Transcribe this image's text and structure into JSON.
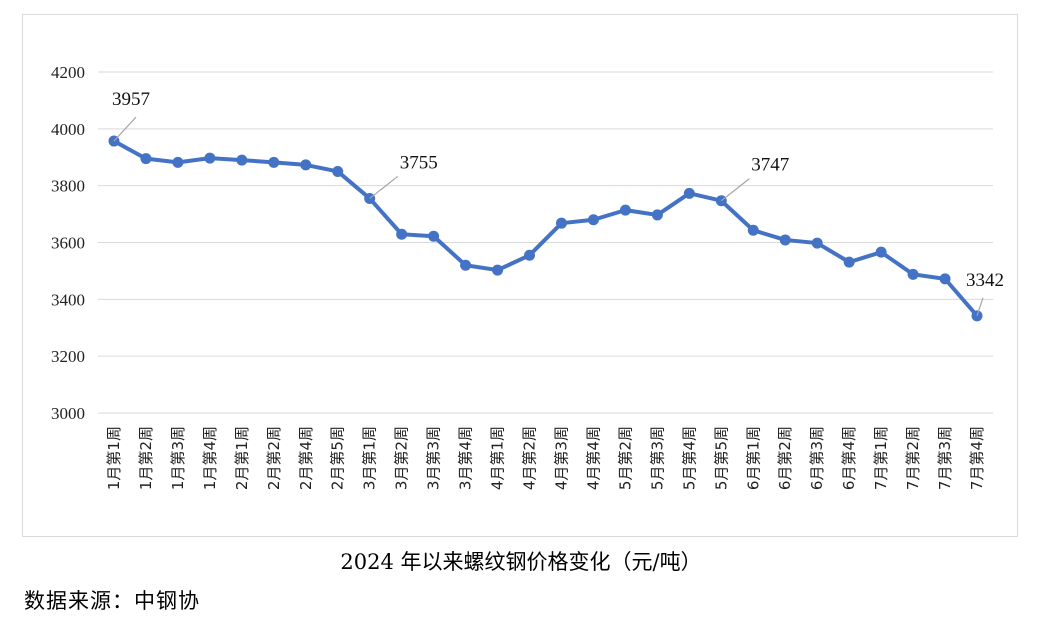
{
  "chart_data": {
    "type": "line",
    "title": "2024 年以来螺纹钢价格变化（元/吨）",
    "xlabel": "",
    "ylabel": "",
    "ylim": [
      3000,
      4200
    ],
    "yticks": [
      3000,
      3200,
      3400,
      3600,
      3800,
      4000,
      4200
    ],
    "grid": true,
    "legend": "none",
    "line_color": "#4472c4",
    "categories": [
      "1月第1周",
      "1月第2周",
      "1月第3周",
      "1月第4周",
      "2月第1周",
      "2月第2周",
      "2月第4周",
      "2月第5周",
      "3月第1周",
      "3月第2周",
      "3月第3周",
      "3月第4周",
      "4月第1周",
      "4月第2周",
      "4月第3周",
      "4月第4周",
      "5月第2周",
      "5月第3周",
      "5月第4周",
      "5月第5周",
      "6月第1周",
      "6月第2周",
      "6月第3周",
      "6月第4周",
      "7月第1周",
      "7月第2周",
      "7月第3周",
      "7月第4周"
    ],
    "values": [
      3957,
      3895,
      3882,
      3897,
      3890,
      3882,
      3873,
      3850,
      3755,
      3629,
      3622,
      3520,
      3503,
      3555,
      3668,
      3680,
      3714,
      3697,
      3773,
      3747,
      3643,
      3609,
      3598,
      3531,
      3566,
      3488,
      3472,
      3342
    ],
    "annotations": [
      {
        "index": 0,
        "label": "3957"
      },
      {
        "index": 8,
        "label": "3755"
      },
      {
        "index": 19,
        "label": "3747"
      },
      {
        "index": 27,
        "label": "3342"
      }
    ]
  },
  "source": "数据来源：中钢协"
}
